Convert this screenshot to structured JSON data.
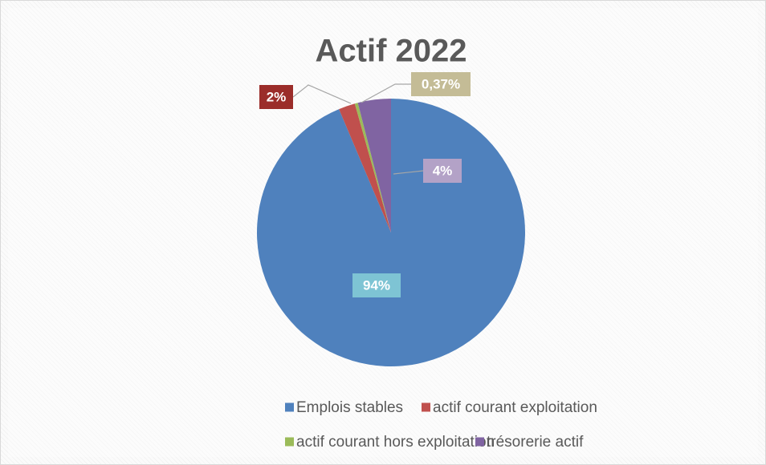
{
  "chart_data": {
    "type": "pie",
    "title": "Actif 2022",
    "categories": [
      "Emplois stables",
      "actif courant exploitation",
      "actif courant hors exploitation",
      "trésorerie actif"
    ],
    "values": [
      94,
      2,
      0.37,
      4
    ],
    "value_labels": [
      "94%",
      "2%",
      "0,37%",
      "4%"
    ],
    "colors": [
      "#4f81bd",
      "#c0504d",
      "#9bbb59",
      "#8064a2"
    ],
    "label_colors": [
      "#7ec4d4",
      "#9b2d2a",
      "#c4bc96",
      "#b3a2c7"
    ],
    "legend": "bottom"
  }
}
